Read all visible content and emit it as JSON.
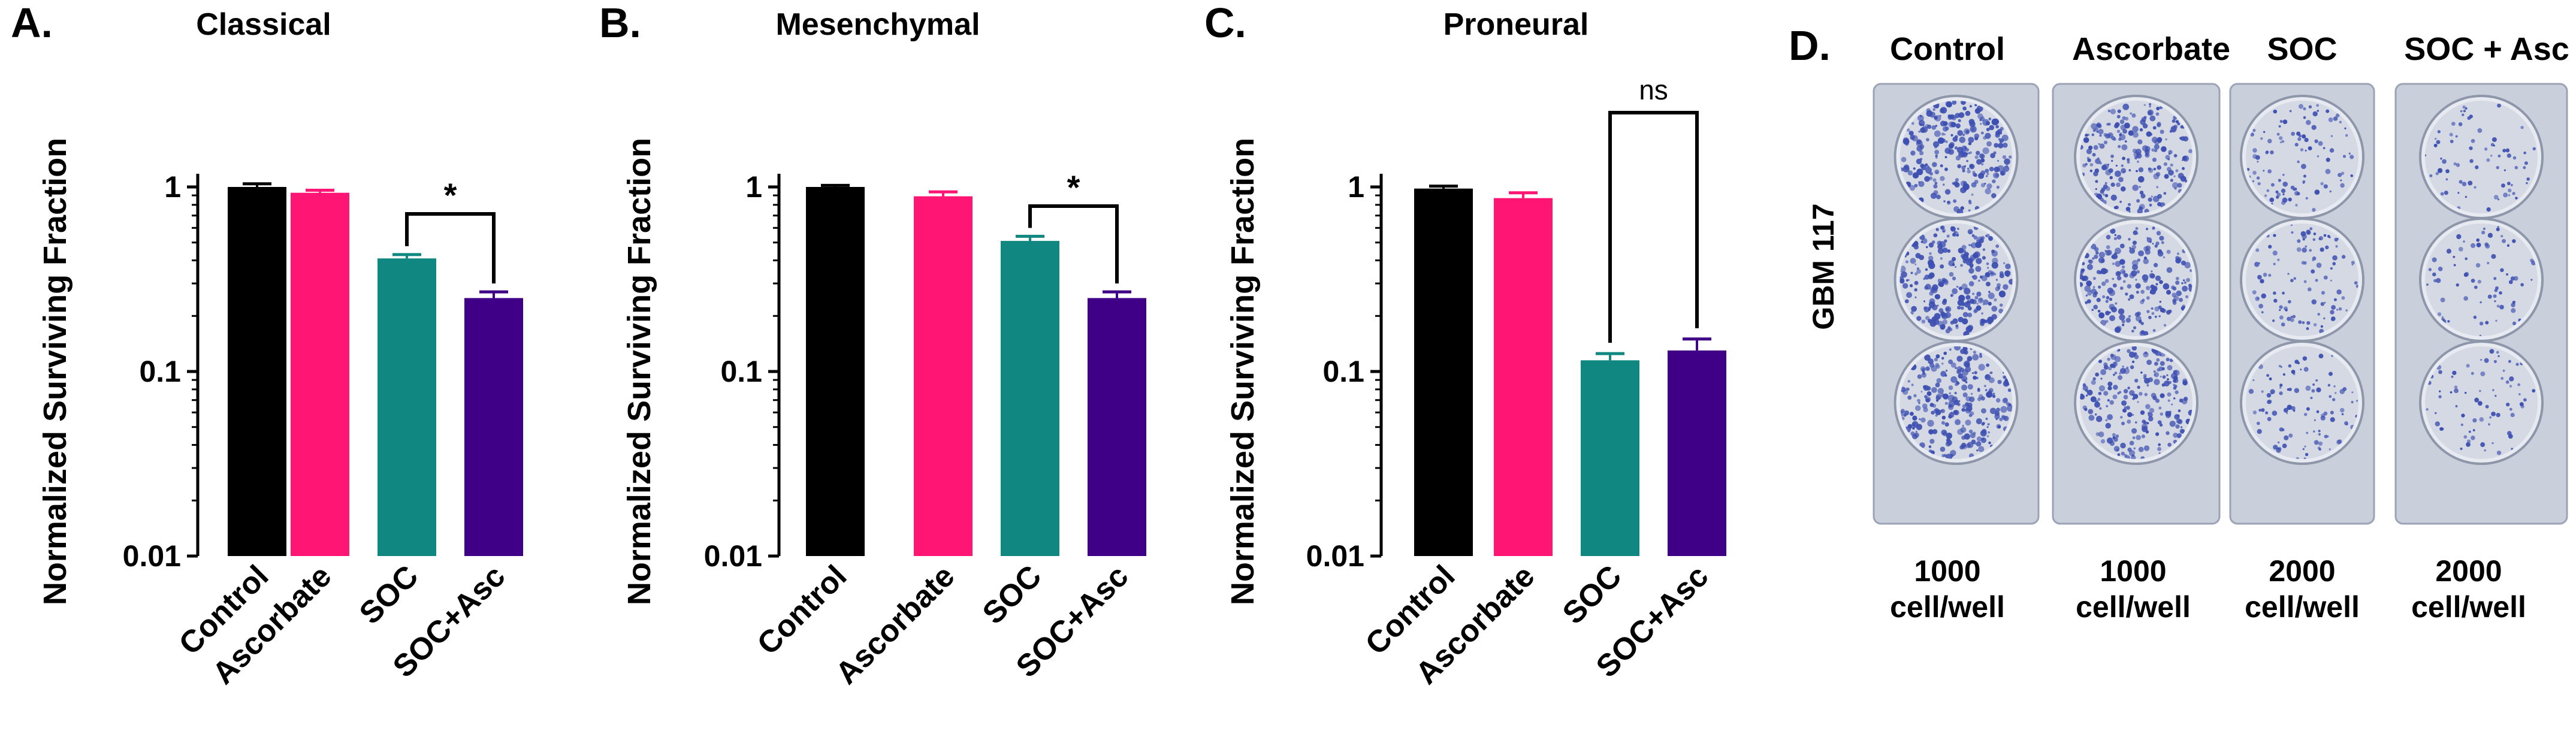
{
  "colors": {
    "Control": "#000000",
    "Ascorbate": "#ff1675",
    "SOC": "#118781",
    "SOC+Asc": "#3f0087",
    "stain": "#3d4fb0",
    "dish": "#d4d9e4"
  },
  "chart_data": [
    {
      "type": "bar",
      "panel": "A.",
      "title": "Classical",
      "ylabel": "Normalized Surviving Fraction",
      "yscale": "log",
      "ylim": [
        0.01,
        1.5
      ],
      "yticks": [
        "1",
        "0.1",
        "0.01"
      ],
      "categories": [
        "Control",
        "Ascorbate",
        "SOC",
        "SOC+Asc"
      ],
      "values": [
        1.0,
        0.93,
        0.41,
        0.25
      ],
      "errors": [
        0.04,
        0.03,
        0.02,
        0.02
      ],
      "significance": {
        "between": [
          "SOC",
          "SOC+Asc"
        ],
        "label": "*"
      }
    },
    {
      "type": "bar",
      "panel": "B.",
      "title": "Mesenchymal",
      "ylabel": "Normalized Surviving Fraction",
      "yscale": "log",
      "ylim": [
        0.01,
        1.5
      ],
      "yticks": [
        "1",
        "0.1",
        "0.01"
      ],
      "categories": [
        "Control",
        "Ascorbate",
        "SOC",
        "SOC+Asc"
      ],
      "values": [
        1.0,
        0.89,
        0.51,
        0.25
      ],
      "errors": [
        0.02,
        0.05,
        0.03,
        0.02
      ],
      "significance": {
        "between": [
          "SOC",
          "SOC+Asc"
        ],
        "label": "*"
      }
    },
    {
      "type": "bar",
      "panel": "C.",
      "title": "Proneural",
      "ylabel": "Normalized Surviving Fraction",
      "yscale": "log",
      "ylim": [
        0.01,
        1.5
      ],
      "yticks": [
        "1",
        "0.1",
        "0.01"
      ],
      "categories": [
        "Control",
        "Ascorbate",
        "SOC",
        "SOC+Asc"
      ],
      "values": [
        0.98,
        0.87,
        0.115,
        0.13
      ],
      "errors": [
        0.03,
        0.06,
        0.01,
        0.02
      ],
      "significance": {
        "between": [
          "SOC",
          "SOC+Asc"
        ],
        "label": "ns"
      }
    }
  ],
  "photo_panel": {
    "panel": "D.",
    "side_label": "GBM 117",
    "columns": [
      {
        "title": "Control",
        "seed_count": "1000",
        "seed_unit": "cell/well",
        "density": 1.0
      },
      {
        "title": "Ascorbate",
        "seed_count": "1000",
        "seed_unit": "cell/well",
        "density": 0.85
      },
      {
        "title": "SOC",
        "seed_count": "2000",
        "seed_unit": "cell/well",
        "density": 0.4
      },
      {
        "title": "SOC + Asc",
        "seed_count": "2000",
        "seed_unit": "cell/well",
        "density": 0.28
      }
    ]
  }
}
